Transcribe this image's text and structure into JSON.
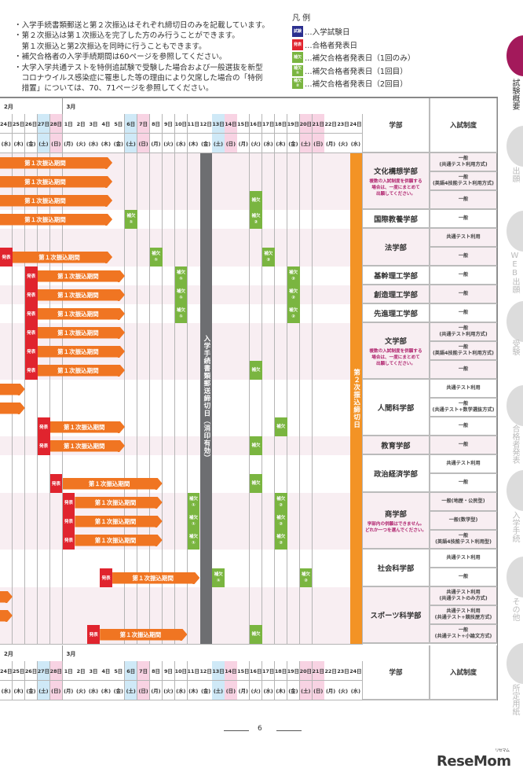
{
  "notes": [
    "・入学手続書類郵送と第２次振込はそれぞれ締切日のみを記載しています。",
    "・第２次振込は第１次振込を完了した方のみ行うことができます。",
    "　第１次振込と第2次振込を同時に行うこともできます。",
    "・補欠合格者の入学手続期間は60ページを参照してください。",
    "・大学入学共通テストを特例追試験で受験した場合および一般選抜を新型",
    "　コロナウイルス感染症に罹患した等の理由により欠席した場合の「特例",
    "　措置」については、70、71ページを参照してください。"
  ],
  "legend": {
    "title": "凡 例",
    "items": [
      {
        "badge": "試験",
        "sub": "",
        "text": "…入学試験日",
        "color": "#2b2f8f"
      },
      {
        "badge": "発表",
        "sub": "",
        "text": "…合格者発表日",
        "color": "#e0242e"
      },
      {
        "badge": "補欠",
        "sub": "",
        "text": "…補欠合格者発表日（1回のみ）",
        "color": "#7ab540"
      },
      {
        "badge": "補欠",
        "sub": "①",
        "text": "…補欠合格者発表日（1回目）",
        "color": "#7ab540"
      },
      {
        "badge": "補欠",
        "sub": "②",
        "text": "…補欠合格者発表日（2回目）",
        "color": "#7ab540"
      }
    ]
  },
  "calendar": {
    "months": [
      {
        "label": "2月",
        "from": "2/24"
      },
      {
        "label": "3月",
        "from": "3/1"
      }
    ],
    "days": [
      {
        "date": "2/24",
        "day": "24日",
        "wd": "(水)",
        "kind": ""
      },
      {
        "date": "2/25",
        "day": "25日",
        "wd": "(木)",
        "kind": ""
      },
      {
        "date": "2/26",
        "day": "26日",
        "wd": "(金)",
        "kind": ""
      },
      {
        "date": "2/27",
        "day": "27日",
        "wd": "(土)",
        "kind": "sat"
      },
      {
        "date": "2/28",
        "day": "28日",
        "wd": "(日)",
        "kind": "sun"
      },
      {
        "date": "3/1",
        "day": "1日",
        "wd": "(月)",
        "kind": ""
      },
      {
        "date": "3/2",
        "day": "2日",
        "wd": "(火)",
        "kind": ""
      },
      {
        "date": "3/3",
        "day": "3日",
        "wd": "(水)",
        "kind": ""
      },
      {
        "date": "3/4",
        "day": "4日",
        "wd": "(木)",
        "kind": ""
      },
      {
        "date": "3/5",
        "day": "5日",
        "wd": "(金)",
        "kind": ""
      },
      {
        "date": "3/6",
        "day": "6日",
        "wd": "(土)",
        "kind": "sat"
      },
      {
        "date": "3/7",
        "day": "7日",
        "wd": "(日)",
        "kind": "sun"
      },
      {
        "date": "3/8",
        "day": "8日",
        "wd": "(月)",
        "kind": ""
      },
      {
        "date": "3/9",
        "day": "9日",
        "wd": "(火)",
        "kind": ""
      },
      {
        "date": "3/10",
        "day": "10日",
        "wd": "(水)",
        "kind": ""
      },
      {
        "date": "3/11",
        "day": "11日",
        "wd": "(木)",
        "kind": ""
      },
      {
        "date": "3/12",
        "day": "12日",
        "wd": "(金)",
        "kind": ""
      },
      {
        "date": "3/13",
        "day": "13日",
        "wd": "(土)",
        "kind": "sat"
      },
      {
        "date": "3/14",
        "day": "14日",
        "wd": "(日)",
        "kind": "sun"
      },
      {
        "date": "3/15",
        "day": "15日",
        "wd": "(月)",
        "kind": ""
      },
      {
        "date": "3/16",
        "day": "16日",
        "wd": "(火)",
        "kind": ""
      },
      {
        "date": "3/17",
        "day": "17日",
        "wd": "(水)",
        "kind": ""
      },
      {
        "date": "3/18",
        "day": "18日",
        "wd": "(木)",
        "kind": ""
      },
      {
        "date": "3/19",
        "day": "19日",
        "wd": "(金)",
        "kind": ""
      },
      {
        "date": "3/20",
        "day": "20日",
        "wd": "(土)",
        "kind": "sun"
      },
      {
        "date": "3/21",
        "day": "21日",
        "wd": "(日)",
        "kind": "sun"
      },
      {
        "date": "3/22",
        "day": "22日",
        "wd": "(月)",
        "kind": ""
      },
      {
        "date": "3/23",
        "day": "23日",
        "wd": "(火)",
        "kind": ""
      },
      {
        "date": "3/24",
        "day": "24日",
        "wd": "(水)",
        "kind": ""
      }
    ],
    "deadlines": [
      {
        "date": "3/12",
        "label": "入学手続書類郵送締切日（消印有効）",
        "color": "#6d6e71"
      },
      {
        "date": "3/24",
        "label": "第２次振込締切日",
        "color": "#f39325"
      }
    ],
    "bar_label": "第１次振込期間",
    "happyo_label": "発表",
    "hoketsu_label": "補欠",
    "rows": [
      {
        "bar": {
          "from": null,
          "to": "3/4"
        }
      },
      {
        "bar": {
          "from": null,
          "to": "3/4"
        }
      },
      {
        "bar": {
          "from": null,
          "to": "3/4"
        },
        "hoketsu": [
          {
            "date": "3/16",
            "n": ""
          }
        ]
      },
      {
        "bar": {
          "from": null,
          "to": "3/4"
        },
        "hoketsu": [
          {
            "date": "3/6",
            "n": "①"
          },
          {
            "date": "3/16",
            "n": "②"
          }
        ]
      },
      {},
      {
        "happyo": "2/24",
        "bar": {
          "from": "2/25",
          "to": "3/4"
        },
        "hoketsu": [
          {
            "date": "3/8",
            "n": "①"
          },
          {
            "date": "3/17",
            "n": "②"
          }
        ]
      },
      {
        "happyo": "2/26",
        "bar": {
          "from": "2/27",
          "to": "3/5"
        },
        "hoketsu": [
          {
            "date": "3/10",
            "n": "①"
          },
          {
            "date": "3/19",
            "n": "②"
          }
        ]
      },
      {
        "happyo": "2/26",
        "bar": {
          "from": "2/27",
          "to": "3/5"
        },
        "hoketsu": [
          {
            "date": "3/10",
            "n": "①"
          },
          {
            "date": "3/19",
            "n": "②"
          }
        ]
      },
      {
        "happyo": "2/26",
        "bar": {
          "from": "2/27",
          "to": "3/5"
        },
        "hoketsu": [
          {
            "date": "3/10",
            "n": "①"
          },
          {
            "date": "3/19",
            "n": "②"
          }
        ]
      },
      {
        "happyo": "2/26",
        "bar": {
          "from": "2/27",
          "to": "3/5"
        }
      },
      {
        "happyo": "2/26",
        "bar": {
          "from": "2/27",
          "to": "3/5"
        }
      },
      {
        "happyo": "2/26",
        "bar": {
          "from": "2/27",
          "to": "3/5"
        },
        "hoketsu": [
          {
            "date": "3/16",
            "n": ""
          }
        ]
      },
      {
        "bar": {
          "from": null,
          "to": "2/25"
        }
      },
      {
        "bar": {
          "from": null,
          "to": "2/25"
        }
      },
      {
        "happyo": "2/27",
        "bar": {
          "from": "2/28",
          "to": "3/5"
        },
        "hoketsu": [
          {
            "date": "3/18",
            "n": ""
          }
        ]
      },
      {
        "happyo": "2/27",
        "bar": {
          "from": "2/28",
          "to": "3/5"
        },
        "hoketsu": [
          {
            "date": "3/16",
            "n": ""
          }
        ]
      },
      {},
      {
        "happyo": "2/28",
        "bar": {
          "from": "3/1",
          "to": "3/8"
        },
        "hoketsu": [
          {
            "date": "3/16",
            "n": ""
          }
        ]
      },
      {
        "happyo": "3/1",
        "bar": {
          "from": "3/2",
          "to": "3/8"
        },
        "hoketsu": [
          {
            "date": "3/11",
            "n": "①"
          },
          {
            "date": "3/18",
            "n": "②"
          }
        ]
      },
      {
        "happyo": "3/1",
        "bar": {
          "from": "3/2",
          "to": "3/8"
        },
        "hoketsu": [
          {
            "date": "3/11",
            "n": "①"
          },
          {
            "date": "3/18",
            "n": "②"
          }
        ]
      },
      {
        "happyo": "3/1",
        "bar": {
          "from": "3/2",
          "to": "3/8"
        },
        "hoketsu": [
          {
            "date": "3/11",
            "n": "①"
          },
          {
            "date": "3/18",
            "n": "②"
          }
        ]
      },
      {},
      {
        "happyo": "3/4",
        "bar": {
          "from": "3/5",
          "to": "3/11"
        },
        "hoketsu": [
          {
            "date": "3/13",
            "n": "①"
          },
          {
            "date": "3/20",
            "n": "②"
          }
        ]
      },
      {
        "bar": {
          "from": null,
          "to": "2/24"
        }
      },
      {
        "bar": {
          "from": null,
          "to": "2/24"
        }
      },
      {
        "happyo": "3/3",
        "bar": {
          "from": "3/4",
          "to": "3/10"
        },
        "hoketsu": [
          {
            "date": "3/16",
            "n": ""
          }
        ]
      }
    ]
  },
  "table": {
    "header_faculty": "学部",
    "header_system": "入試制度",
    "faculties": [
      {
        "name": "文化構想学部",
        "note": "複数の入試制度を併願する\n場合は、一度にまとめて\n出願してください。",
        "systems": [
          "一般\n(共通テスト利用方式)",
          "一般\n(英語4技能テスト利用方式)",
          "一般"
        ]
      },
      {
        "name": "国際教養学部",
        "note": "",
        "systems": [
          "一般"
        ]
      },
      {
        "name": "法学部",
        "note": "",
        "systems": [
          "共通テスト利用",
          "一般"
        ]
      },
      {
        "name": "基幹理工学部",
        "note": "",
        "systems": [
          "一般"
        ]
      },
      {
        "name": "創造理工学部",
        "note": "",
        "systems": [
          "一般"
        ]
      },
      {
        "name": "先進理工学部",
        "note": "",
        "systems": [
          "一般"
        ]
      },
      {
        "name": "文学部",
        "note": "複数の入試制度を併願する\n場合は、一度にまとめて\n出願してください。",
        "systems": [
          "一般\n(共通テスト利用方式)",
          "一般\n(英語4技能テスト利用方式)",
          "一般"
        ]
      },
      {
        "name": "人間科学部",
        "note": "",
        "systems": [
          "共通テスト利用",
          "一般\n(共通テスト+数学選抜方式)",
          "一般"
        ]
      },
      {
        "name": "教育学部",
        "note": "",
        "systems": [
          "一般"
        ]
      },
      {
        "name": "政治経済学部",
        "note": "",
        "systems": [
          "共通テスト利用",
          "一般"
        ]
      },
      {
        "name": "商学部",
        "note": "学部内の併願はできません。\nどれか一つを選んでください。",
        "systems": [
          "一般(地歴・公民型)",
          "一般(数学型)",
          "一般\n(英語4技能テスト利用型)"
        ]
      },
      {
        "name": "社会科学部",
        "note": "",
        "systems": [
          "共通テスト利用",
          "一般"
        ]
      },
      {
        "name": "スポーツ科学部",
        "note": "",
        "systems": [
          "共通テスト利用\n(共通テストのみ方式)",
          "共通テスト利用\n(共通テスト+競技歴方式)",
          "一般\n(共通テスト+小論文方式)"
        ]
      }
    ]
  },
  "sidebar": {
    "tabs": [
      {
        "label": "試験概要",
        "active": true
      },
      {
        "label": "出願",
        "active": false
      },
      {
        "label": "WEB出願",
        "active": false
      },
      {
        "label": "受験",
        "active": false
      },
      {
        "label": "合格者発表",
        "active": false
      },
      {
        "label": "入学手続",
        "active": false
      },
      {
        "label": "その他",
        "active": false
      },
      {
        "label": "所定用紙",
        "active": false
      }
    ],
    "active_color": "#a3195b",
    "inactive_color": "#dcdcdc"
  },
  "page_number": "6",
  "logo": {
    "text": "ReseMom",
    "ruby": "リセマム"
  }
}
